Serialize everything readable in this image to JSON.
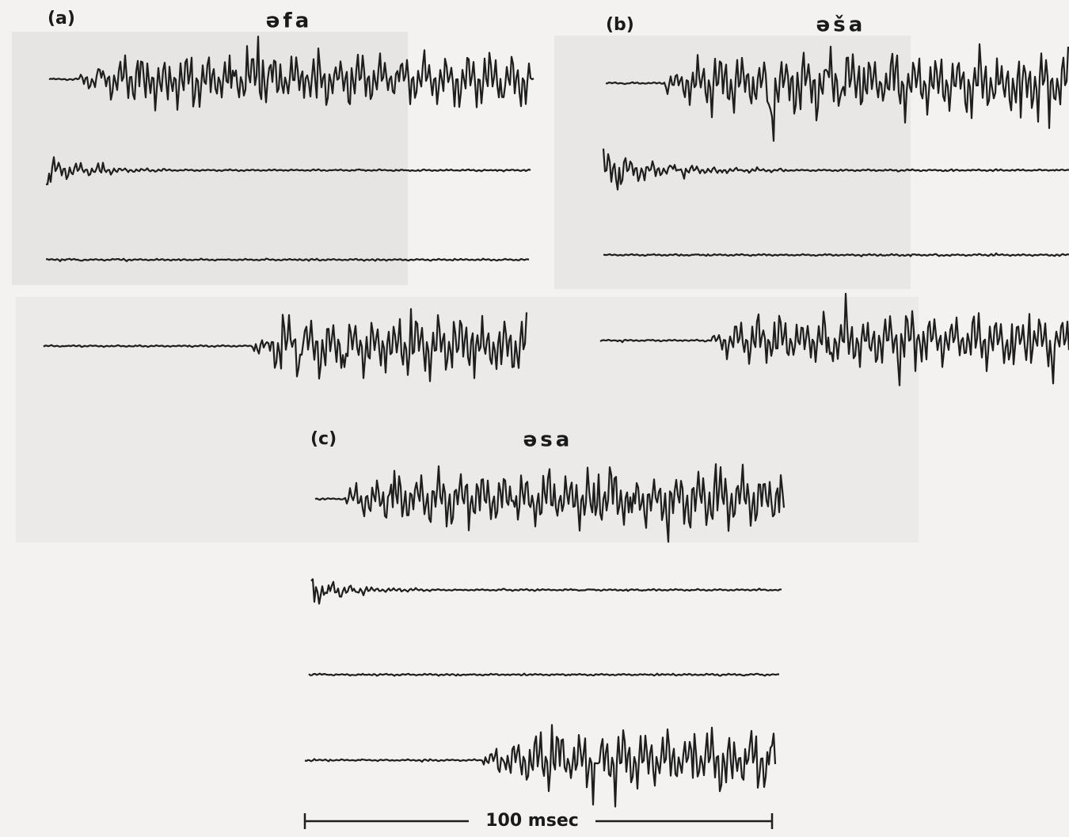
{
  "panels": [
    {
      "label": "(a)",
      "title": "əfa"
    },
    {
      "label": "(b)",
      "title": "əša"
    },
    {
      "label": "(c)",
      "title": "əsa"
    }
  ],
  "scale_bar": "100 msec"
}
